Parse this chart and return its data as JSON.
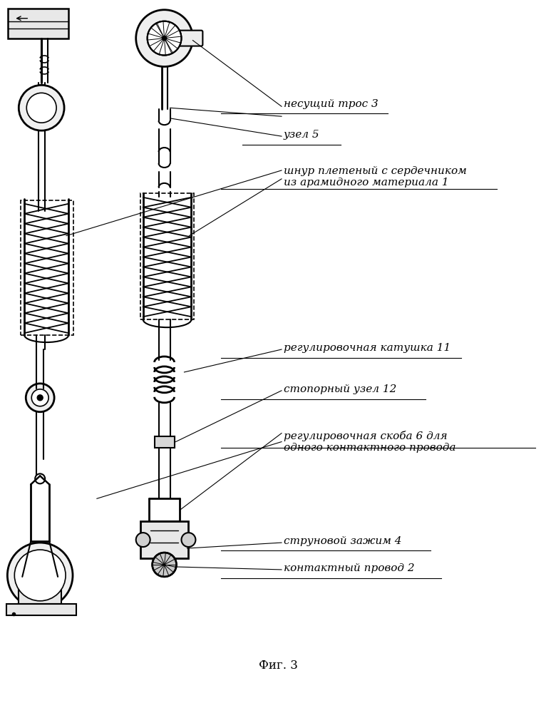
{
  "bg_color": "#ffffff",
  "lc": "#000000",
  "fig_w": 7.8,
  "fig_h": 10.0,
  "dpi": 100,
  "labels": {
    "cable": "несущий трос 3",
    "node5": "узел 5",
    "cord": "шнур плетеный с сердечником\nиз арамидного материала 1",
    "coil11": "регулировочная катушка 11",
    "stop12": "стопорный узел 12",
    "bracket6": "регулировочная скоба 6 для\nодного контактного провода",
    "clamp4": "струновой зажим 4",
    "wire2": "контактный провод 2",
    "fig3": "Фиг. 3"
  }
}
